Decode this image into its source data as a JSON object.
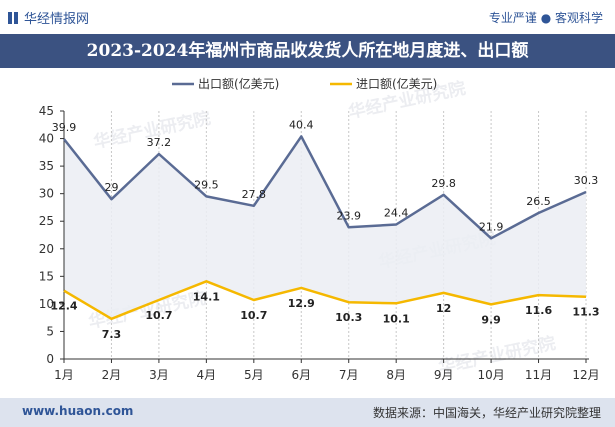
{
  "header": {
    "brand": "华经情报网",
    "slogan": "专业严谨 ● 客观科学"
  },
  "title": "2023-2024年福州市商品收发货人所在地月度进、出口额",
  "footer": {
    "url": "www.huaon.com",
    "source": "数据来源：中国海关，华经产业研究院整理"
  },
  "watermark": {
    "cn": "华经产业研究院",
    "url": "www.huaon.com"
  },
  "colors": {
    "export": "#5a6b94",
    "import": "#f5b800",
    "fill": "#ebedf3",
    "title_bg": "#3b5281",
    "brand": "#2f5597"
  },
  "chart_data": {
    "type": "line",
    "categories": [
      "1月",
      "2月",
      "3月",
      "4月",
      "5月",
      "6月",
      "7月",
      "8月",
      "9月",
      "10月",
      "11月",
      "12月"
    ],
    "series": [
      {
        "name": "出口额(亿美元)",
        "values": [
          39.9,
          29,
          37.2,
          29.5,
          27.8,
          40.4,
          23.9,
          24.4,
          29.8,
          21.9,
          26.5,
          30.3
        ]
      },
      {
        "name": "进口额(亿美元)",
        "values": [
          12.4,
          7.3,
          10.7,
          14.1,
          10.7,
          12.9,
          10.3,
          10.1,
          12,
          9.9,
          11.6,
          11.3
        ]
      }
    ],
    "yticks": [
      "0",
      "5",
      "10",
      "15",
      "20",
      "25",
      "30",
      "35",
      "40",
      "45"
    ],
    "ylim": [
      0,
      45
    ],
    "legend_position": "top-center",
    "grid": "vertical dashed"
  }
}
